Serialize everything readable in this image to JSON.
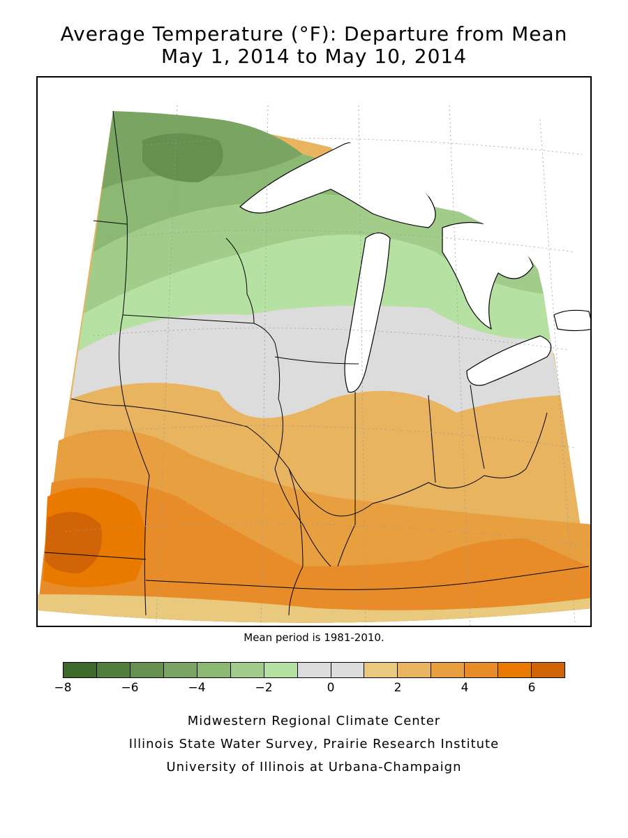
{
  "title": {
    "line1": "Average Temperature (°F): Departure from Mean",
    "line2": "May 1, 2014 to May 10, 2014"
  },
  "map": {
    "region": "Midwest United States",
    "variable": "Average temperature departure from mean",
    "units": "°F",
    "pattern": "Cooler than normal in the north (Minnesota, Wisconsin, northern Michigan); near normal across Iowa, northern Illinois, northern Indiana and Ohio; warmer than normal in the south (Missouri, southern Illinois, Kentucky)",
    "colors": {
      "water": "#ffffff",
      "borders": "#000000",
      "grid": "#9a9a9a"
    }
  },
  "mean_period_note": "Mean period is 1981-2010.",
  "legend": {
    "min": -8,
    "max": 7,
    "bins": [
      {
        "from": -8,
        "to": -7,
        "color": "#3d6a2a"
      },
      {
        "from": -7,
        "to": -6,
        "color": "#527f3c"
      },
      {
        "from": -6,
        "to": -5,
        "color": "#65904d"
      },
      {
        "from": -5,
        "to": -4,
        "color": "#79a461"
      },
      {
        "from": -4,
        "to": -3,
        "color": "#8bb873"
      },
      {
        "from": -3,
        "to": -2,
        "color": "#a2cc8a"
      },
      {
        "from": -2,
        "to": -1,
        "color": "#b5e2a2"
      },
      {
        "from": -1,
        "to": 0,
        "color": "#dcdcdc"
      },
      {
        "from": 0,
        "to": 1,
        "color": "#dcdcdc"
      },
      {
        "from": 1,
        "to": 2,
        "color": "#e9c97e"
      },
      {
        "from": 2,
        "to": 3,
        "color": "#e8b45f"
      },
      {
        "from": 3,
        "to": 4,
        "color": "#e89f40"
      },
      {
        "from": 4,
        "to": 5,
        "color": "#e88c2a"
      },
      {
        "from": 5,
        "to": 6,
        "color": "#e87a00"
      },
      {
        "from": 6,
        "to": 7,
        "color": "#d26408"
      }
    ],
    "ticks": [
      "−8",
      "−6",
      "−4",
      "−2",
      "0",
      "2",
      "4",
      "6"
    ],
    "tick_values": [
      -8,
      -6,
      -4,
      -2,
      0,
      2,
      4,
      6
    ]
  },
  "credits": {
    "line1": "Midwestern Regional Climate Center",
    "line2": "Illinois State Water Survey, Prairie Research Institute",
    "line3": "University of Illinois at Urbana-Champaign"
  }
}
